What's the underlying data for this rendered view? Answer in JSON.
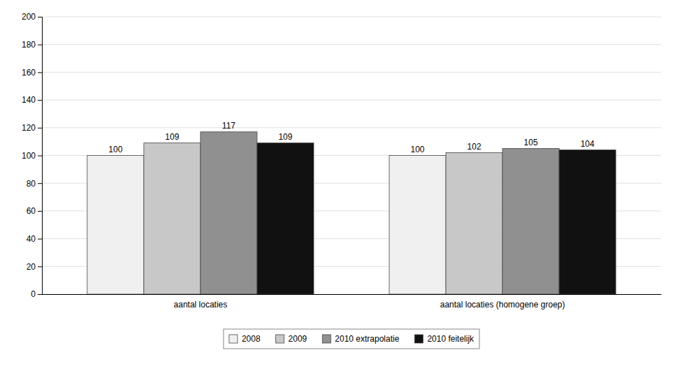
{
  "chart_data": {
    "type": "bar",
    "categories": [
      "aantal locaties",
      "aantal locaties (homogene groep)"
    ],
    "series": [
      {
        "name": "2008",
        "color": "#f0f0f0",
        "values": [
          100,
          100
        ]
      },
      {
        "name": "2009",
        "color": "#c8c8c8",
        "values": [
          109,
          102
        ]
      },
      {
        "name": "2010 extrapolatie",
        "color": "#909090",
        "values": [
          117,
          105
        ]
      },
      {
        "name": "2010 feitelijk",
        "color": "#111111",
        "values": [
          109,
          104
        ]
      }
    ],
    "ylim": [
      0,
      200
    ],
    "yticks": [
      0,
      20,
      40,
      60,
      80,
      100,
      120,
      140,
      160,
      180,
      200
    ],
    "grid": true,
    "data_labels": true,
    "legend": "bottom"
  }
}
